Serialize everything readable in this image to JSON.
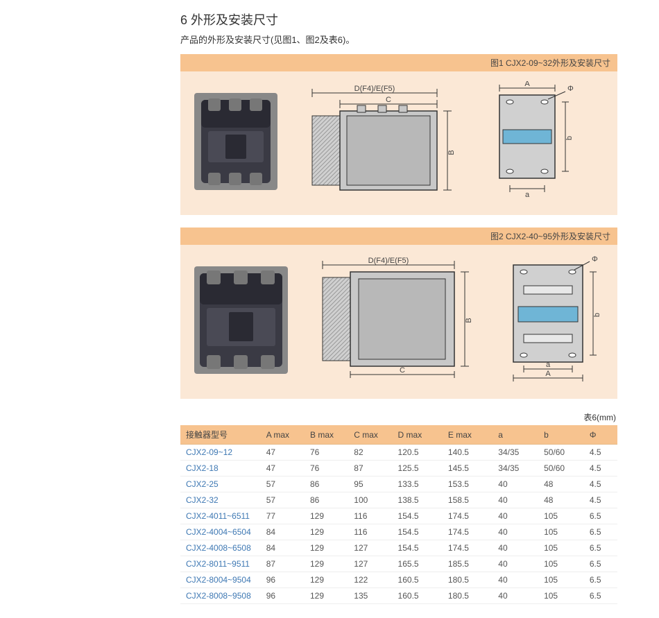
{
  "heading": "6 外形及安装尺寸",
  "subheading": "产品的外形及安装尺寸(见图1、图2及表6)。",
  "figure1": {
    "caption": "图1 CJX2-09~32外形及安装尺寸",
    "dim_top_label": "D(F4)/E(F5)",
    "label_C": "C",
    "label_B": "B",
    "label_A": "A",
    "label_a": "a",
    "label_b": "b",
    "label_phi": "Φ",
    "colors": {
      "outline": "#3a3a3a",
      "fill_body": "#c8c8c8",
      "fill_light": "#e8e8e8",
      "band_blue": "#6fb5d6",
      "hatch": "#888"
    }
  },
  "figure2": {
    "caption": "图2 CJX2-40~95外形及安装尺寸",
    "dim_top_label": "D(F4)/E(F5)",
    "label_C": "C",
    "label_B": "B",
    "label_A": "A",
    "label_a": "a",
    "label_b": "b",
    "label_phi": "Φ",
    "colors": {
      "outline": "#3a3a3a",
      "fill_body": "#c8c8c8",
      "fill_light": "#e8e8e8",
      "band_blue": "#6fb5d6"
    }
  },
  "table6": {
    "caption": "表6(mm)",
    "columns": [
      "接触器型号",
      "A max",
      "B max",
      "C max",
      "D max",
      "E max",
      "a",
      "b",
      "Φ"
    ],
    "rows": [
      [
        "CJX2-09~12",
        "47",
        "76",
        "82",
        "120.5",
        "140.5",
        "34/35",
        "50/60",
        "4.5"
      ],
      [
        "CJX2-18",
        "47",
        "76",
        "87",
        "125.5",
        "145.5",
        "34/35",
        "50/60",
        "4.5"
      ],
      [
        "CJX2-25",
        "57",
        "86",
        "95",
        "133.5",
        "153.5",
        "40",
        "48",
        "4.5"
      ],
      [
        "CJX2-32",
        "57",
        "86",
        "100",
        "138.5",
        "158.5",
        "40",
        "48",
        "4.5"
      ],
      [
        "CJX2-4011~6511",
        "77",
        "129",
        "116",
        "154.5",
        "174.5",
        "40",
        "105",
        "6.5"
      ],
      [
        "CJX2-4004~6504",
        "84",
        "129",
        "116",
        "154.5",
        "174.5",
        "40",
        "105",
        "6.5"
      ],
      [
        "CJX2-4008~6508",
        "84",
        "129",
        "127",
        "154.5",
        "174.5",
        "40",
        "105",
        "6.5"
      ],
      [
        "CJX2-8011~9511",
        "87",
        "129",
        "127",
        "165.5",
        "185.5",
        "40",
        "105",
        "6.5"
      ],
      [
        "CJX2-8004~9504",
        "96",
        "129",
        "122",
        "160.5",
        "180.5",
        "40",
        "105",
        "6.5"
      ],
      [
        "CJX2-8008~9508",
        "96",
        "129",
        "135",
        "160.5",
        "180.5",
        "40",
        "105",
        "6.5"
      ]
    ],
    "col_widths": [
      "120px",
      "60px",
      "60px",
      "60px",
      "70px",
      "70px",
      "60px",
      "60px",
      "40px"
    ],
    "header_bg": "#f7c38f",
    "model_color": "#3e78b3"
  }
}
